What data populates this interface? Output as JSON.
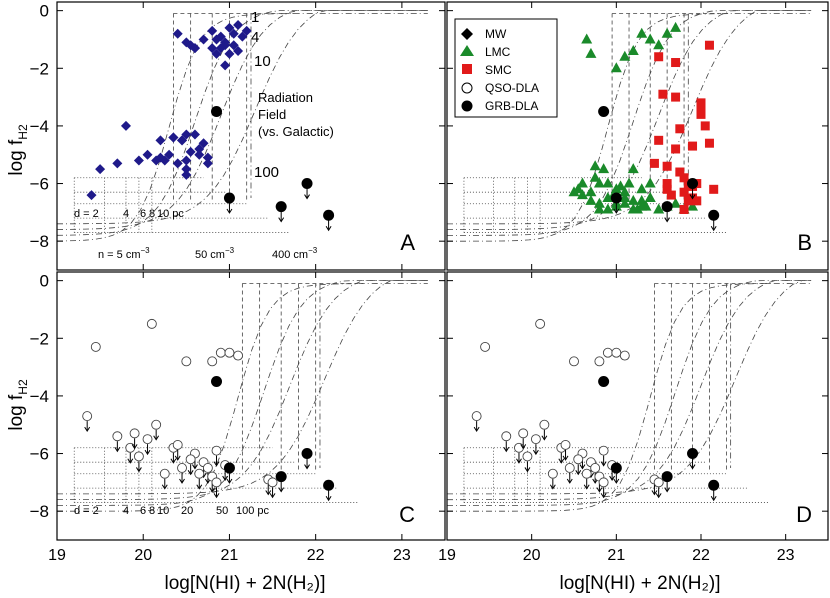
{
  "figure": {
    "xlabel": "log[N(HI) + 2N(H₂)]",
    "ylabel": "log f",
    "ylabel_sub": "H2",
    "xlim": [
      19,
      23.5
    ],
    "ylim": [
      -9,
      0.3
    ],
    "xticks": [
      19,
      20,
      21,
      22,
      23
    ],
    "yticks": [
      0,
      -2,
      -4,
      -6,
      -8
    ]
  },
  "chart_data": [
    {
      "type": "scatter",
      "panel": "A",
      "series": [
        {
          "name": "MW",
          "marker": "diamond",
          "color": "#1f1a8a",
          "x": [
            19.4,
            19.5,
            19.7,
            19.8,
            19.95,
            20.05,
            20.15,
            20.2,
            20.25,
            20.3,
            20.35,
            20.4,
            20.45,
            20.5,
            20.55,
            20.6,
            20.65,
            20.7,
            20.75,
            20.8,
            20.85,
            20.9,
            20.95,
            21.0,
            21.05,
            21.1,
            21.15,
            21.2,
            20.4,
            20.5,
            20.55,
            20.6,
            20.7,
            20.8,
            20.9,
            20.95,
            21.0,
            21.05,
            21.1,
            20.45,
            20.5,
            20.65,
            20.75,
            20.85,
            20.95,
            20.6,
            20.2,
            20.35,
            20.5,
            20.5
          ],
          "y": [
            -6.4,
            -5.5,
            -5.3,
            -4.0,
            -5.2,
            -5.0,
            -5.2,
            -5.1,
            -5.2,
            -5.0,
            -4.4,
            -5.3,
            -4.5,
            -5.7,
            -4.9,
            -4.3,
            -5.0,
            -4.6,
            -5.1,
            -0.7,
            -1.0,
            -1.3,
            -1.2,
            -0.6,
            -0.8,
            -1.4,
            -0.9,
            -0.7,
            -0.8,
            -1.1,
            -1.2,
            -1.3,
            -1.0,
            -1.3,
            -0.9,
            -1.1,
            -1.5,
            -1.2,
            -0.5,
            -4.5,
            -4.3,
            -4.8,
            -5.3,
            -1.5,
            -1.9,
            -1.3,
            -4.5,
            -4.4,
            -5.2,
            -5.5
          ]
        },
        {
          "name": "GRB-DLA",
          "marker": "filled-circle",
          "color": "#000000",
          "x": [
            20.85,
            21.0,
            21.6,
            21.9,
            22.15
          ],
          "y": [
            -3.5,
            -6.5,
            -6.8,
            -6.0,
            -7.1
          ]
        }
      ],
      "model_curves": [
        "1",
        "4",
        "10",
        "100"
      ],
      "annotations": [
        "Radiation",
        "Field",
        "(vs. Galactic)"
      ],
      "distance_labels": [
        "d = 2",
        "4",
        "6",
        "8",
        "10 pc"
      ],
      "density_labels": [
        "n = 5 cm",
        "50 cm",
        "400 cm"
      ],
      "density_exponent": "−3"
    },
    {
      "type": "scatter",
      "panel": "B",
      "legend": [
        "MW",
        "LMC",
        "SMC",
        "QSO-DLA",
        "GRB-DLA"
      ],
      "series": [
        {
          "name": "LMC",
          "marker": "triangle",
          "color": "#1a8a2a",
          "x": [
            20.55,
            20.6,
            20.65,
            20.7,
            20.75,
            20.8,
            20.85,
            20.9,
            20.95,
            21.0,
            21.05,
            21.1,
            21.15,
            21.2,
            21.25,
            21.3,
            21.35,
            21.4,
            20.7,
            20.75,
            20.8,
            20.9,
            21.0,
            21.1,
            21.2,
            21.3,
            21.4,
            21.5,
            21.6,
            21.7,
            20.5,
            20.6,
            20.7,
            20.8,
            20.9,
            21.0,
            21.1,
            21.2,
            21.3,
            21.4,
            21.5,
            21.6,
            21.7,
            21.8,
            21.9,
            21.0,
            21.1,
            21.2,
            21.3,
            21.4
          ],
          "y": [
            -6.2,
            -6.0,
            -1.0,
            -1.5,
            -5.4,
            -6.7,
            -5.5,
            -6.0,
            -6.5,
            -6.8,
            -6.1,
            -6.5,
            -6.0,
            -6.6,
            -6.9,
            -6.2,
            -6.8,
            -6.5,
            -6.3,
            -5.8,
            -6.0,
            -6.9,
            -6.2,
            -6.7,
            -5.5,
            -6.8,
            -6.0,
            -1.2,
            -0.8,
            -0.6,
            -6.3,
            -6.4,
            -6.6,
            -6.9,
            -6.5,
            -6.7,
            -6.3,
            -6.9,
            -6.6,
            -6.5,
            -6.9,
            -6.8,
            -6.7,
            -6.9,
            -6.8,
            -2.0,
            -1.6,
            -1.4,
            -0.8,
            -1.0
          ]
        },
        {
          "name": "SMC",
          "marker": "square",
          "color": "#e11a1a",
          "x": [
            21.45,
            21.5,
            21.55,
            21.6,
            21.65,
            21.7,
            21.75,
            21.8,
            21.85,
            21.9,
            21.95,
            22.0,
            22.05,
            22.1,
            22.15,
            21.5,
            21.6,
            21.7,
            21.8,
            21.9,
            22.0,
            22.1,
            21.6,
            21.7,
            21.8,
            21.9,
            22.0,
            21.75,
            21.85,
            21.95
          ],
          "y": [
            -5.3,
            -1.6,
            -2.9,
            -5.4,
            -6.4,
            -1.8,
            -4.1,
            -6.3,
            -6.0,
            -4.7,
            -6.6,
            -3.2,
            -4.0,
            -1.2,
            -6.2,
            -4.5,
            -6.0,
            -3.0,
            -5.8,
            -6.5,
            -3.5,
            -4.6,
            -6.2,
            -4.8,
            -6.9,
            -6.1,
            -3.6,
            -5.6,
            -6.6,
            -6.0
          ]
        },
        {
          "name": "GRB-DLA",
          "marker": "filled-circle",
          "color": "#000000",
          "x": [
            20.85,
            21.0,
            21.6,
            21.9,
            22.15
          ],
          "y": [
            -3.5,
            -6.5,
            -6.8,
            -6.0,
            -7.1
          ]
        }
      ]
    },
    {
      "type": "scatter",
      "panel": "C",
      "series": [
        {
          "name": "QSO-DLA",
          "marker": "open-circle",
          "color": "#444444",
          "x": [
            19.35,
            19.45,
            19.7,
            19.85,
            19.9,
            19.95,
            20.05,
            20.1,
            20.15,
            20.25,
            20.35,
            20.5,
            20.6,
            20.7,
            20.75,
            20.8,
            20.85,
            20.9,
            20.95,
            21.0,
            21.1,
            20.4,
            20.45,
            20.55,
            20.65,
            20.8,
            20.85,
            21.45,
            21.5
          ],
          "y": [
            -4.7,
            -2.3,
            -5.4,
            -5.8,
            -5.3,
            -6.1,
            -5.5,
            -1.5,
            -5.0,
            -6.7,
            -5.8,
            -2.8,
            -6.0,
            -6.3,
            -6.5,
            -2.8,
            -5.9,
            -2.5,
            -6.4,
            -2.5,
            -2.6,
            -5.7,
            -6.5,
            -6.2,
            -6.7,
            -6.8,
            -7.0,
            -6.9,
            -7.0
          ]
        },
        {
          "name": "GRB-DLA",
          "marker": "filled-circle",
          "color": "#000000",
          "x": [
            20.85,
            21.0,
            21.6,
            21.9,
            22.15
          ],
          "y": [
            -3.5,
            -6.5,
            -6.8,
            -6.0,
            -7.1
          ]
        }
      ],
      "distance_labels": [
        "d = 2",
        "4",
        "6",
        "8",
        "10",
        "20",
        "50",
        "100 pc"
      ]
    },
    {
      "type": "scatter",
      "panel": "D",
      "series": [
        {
          "name": "QSO-DLA",
          "marker": "open-circle",
          "color": "#444444",
          "x": [
            19.35,
            19.45,
            19.7,
            19.85,
            19.9,
            19.95,
            20.05,
            20.1,
            20.15,
            20.25,
            20.35,
            20.5,
            20.6,
            20.7,
            20.75,
            20.8,
            20.85,
            20.9,
            20.95,
            21.0,
            21.1,
            20.4,
            20.45,
            20.55,
            20.65,
            20.8,
            20.85,
            21.45,
            21.5
          ],
          "y": [
            -4.7,
            -2.3,
            -5.4,
            -5.8,
            -5.3,
            -6.1,
            -5.5,
            -1.5,
            -5.0,
            -6.7,
            -5.8,
            -2.8,
            -6.0,
            -6.3,
            -6.5,
            -2.8,
            -5.9,
            -2.5,
            -6.4,
            -2.5,
            -2.6,
            -5.7,
            -6.5,
            -6.2,
            -6.7,
            -6.8,
            -7.0,
            -6.9,
            -7.0
          ]
        },
        {
          "name": "GRB-DLA",
          "marker": "filled-circle",
          "color": "#000000",
          "x": [
            20.85,
            21.0,
            21.6,
            21.9,
            22.15
          ],
          "y": [
            -3.5,
            -6.5,
            -6.8,
            -6.0,
            -7.1
          ]
        }
      ]
    }
  ]
}
